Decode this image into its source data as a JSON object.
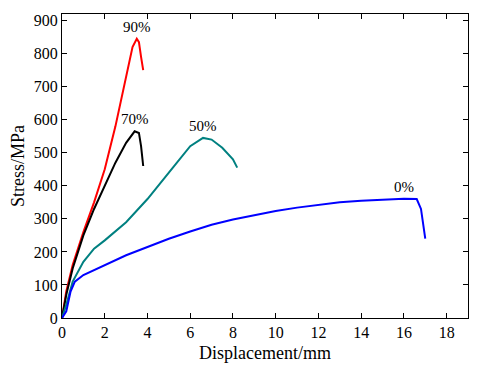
{
  "chart_data": {
    "type": "line",
    "x_label": "Displacement/mm",
    "y_label": "Stress/MPa",
    "xlim": [
      0,
      19
    ],
    "ylim": [
      0,
      920
    ],
    "xticks": [
      0,
      2,
      4,
      6,
      8,
      10,
      12,
      14,
      16,
      18
    ],
    "yticks": [
      0,
      100,
      200,
      300,
      400,
      500,
      600,
      700,
      800,
      900
    ],
    "grid": false,
    "series": [
      {
        "name": "90%",
        "color": "#ff0000",
        "x": [
          0,
          0.2,
          0.5,
          1,
          1.5,
          2,
          2.5,
          3,
          3.3,
          3.5,
          3.6,
          3.7,
          3.8
        ],
        "values": [
          0,
          80,
          160,
          260,
          350,
          450,
          580,
          730,
          820,
          845,
          835,
          790,
          750
        ]
      },
      {
        "name": "70%",
        "color": "#000000",
        "x": [
          0,
          0.2,
          0.5,
          1,
          1.5,
          2,
          2.5,
          3,
          3.4,
          3.6,
          3.7,
          3.8
        ],
        "values": [
          0,
          70,
          150,
          250,
          330,
          400,
          470,
          530,
          565,
          560,
          520,
          460
        ]
      },
      {
        "name": "50%",
        "color": "#008080",
        "x": [
          0,
          0.2,
          0.5,
          1,
          1.5,
          2,
          3,
          4,
          5,
          6,
          6.6,
          7,
          7.5,
          8,
          8.2
        ],
        "values": [
          0,
          40,
          110,
          170,
          210,
          235,
          290,
          360,
          440,
          520,
          545,
          540,
          515,
          480,
          455
        ]
      },
      {
        "name": "0%",
        "color": "#0000ff",
        "x": [
          0,
          0.2,
          0.4,
          0.6,
          1,
          2,
          3,
          4,
          5,
          6,
          7,
          8,
          9,
          10,
          11,
          12,
          13,
          14,
          15,
          16,
          16.6,
          16.8,
          17
        ],
        "values": [
          0,
          20,
          80,
          110,
          130,
          160,
          190,
          215,
          240,
          262,
          282,
          298,
          312,
          324,
          334,
          343,
          350,
          355,
          359,
          361,
          360,
          330,
          240
        ]
      }
    ]
  }
}
